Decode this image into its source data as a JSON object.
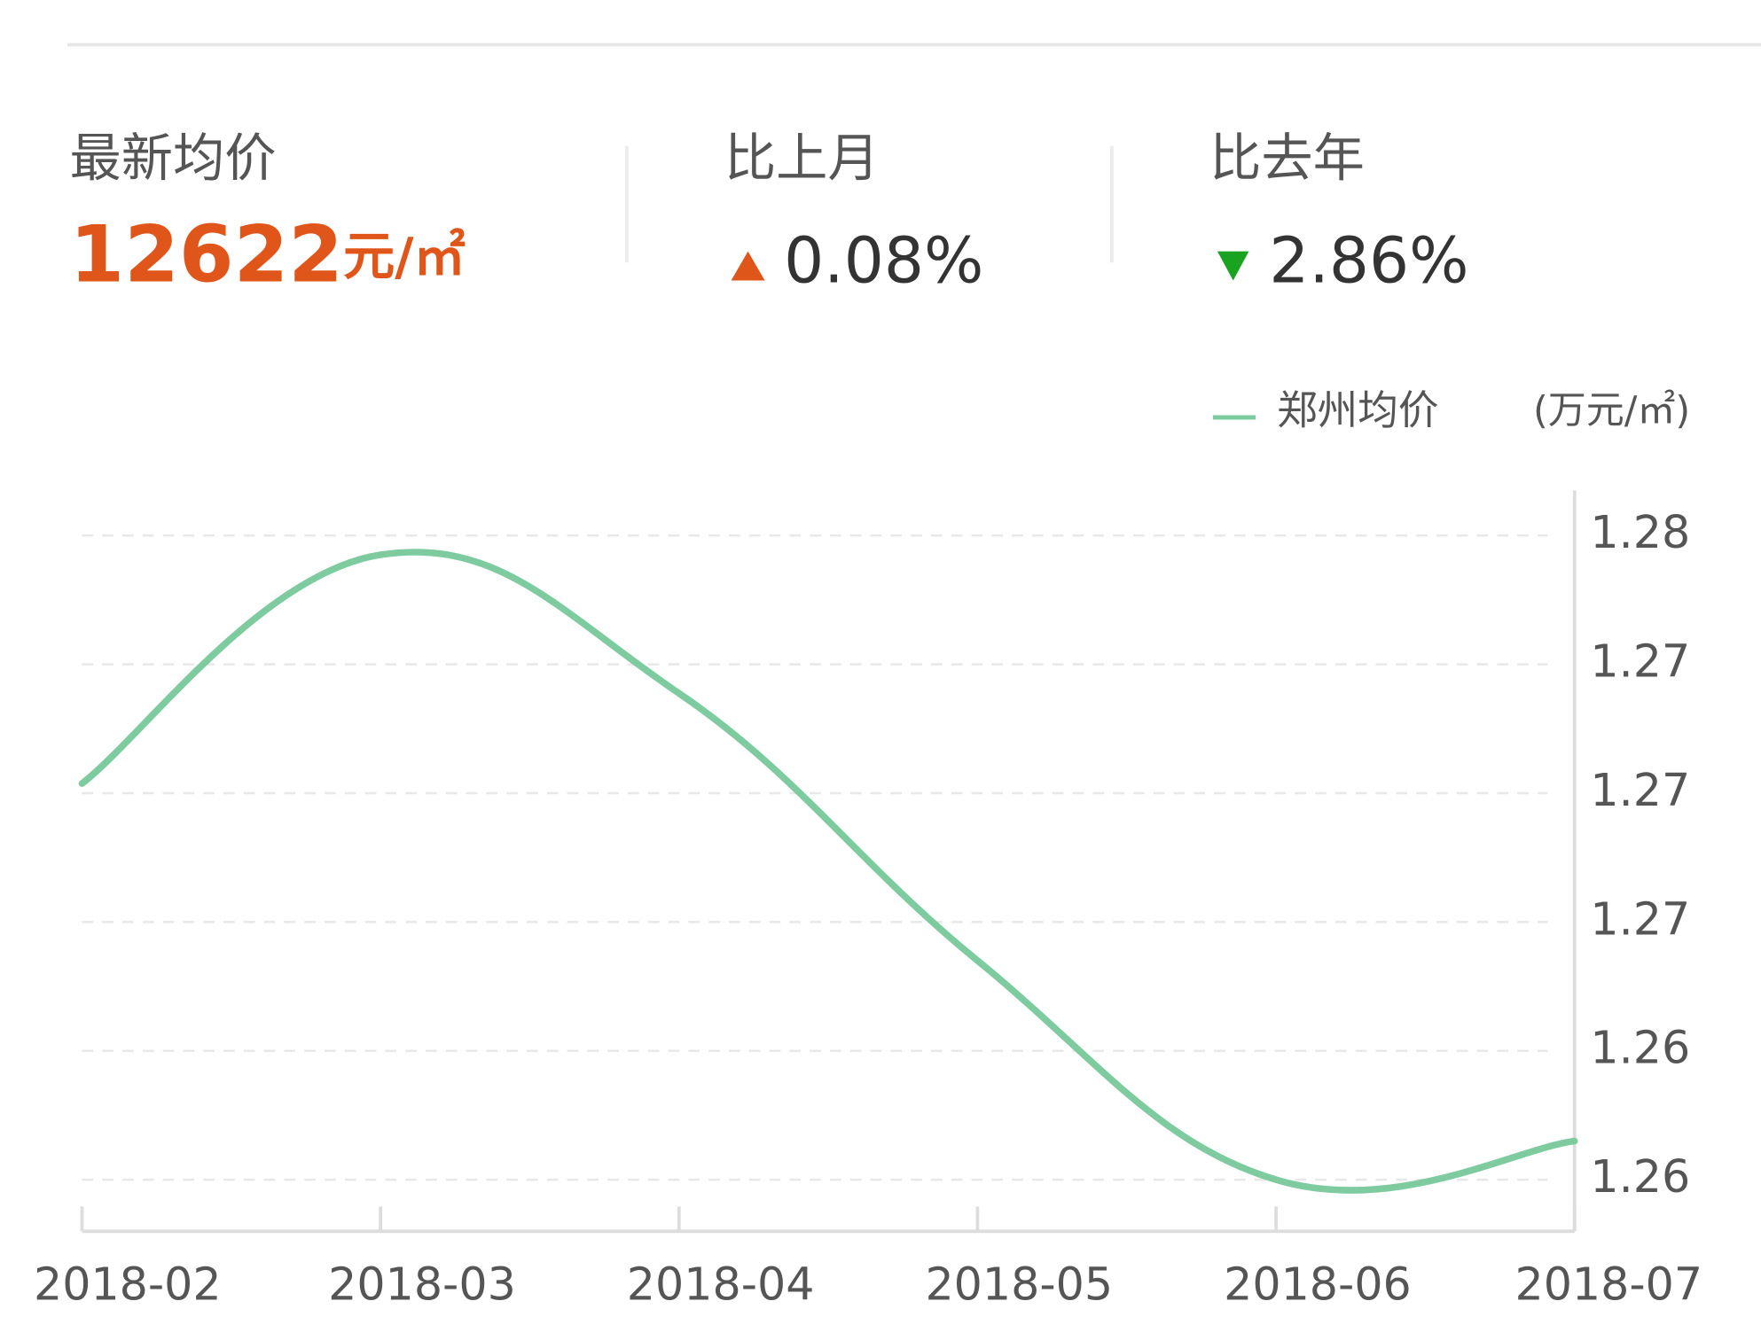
{
  "header": {
    "latest": {
      "label": "最新均价",
      "value": "12622",
      "unit": "元/㎡"
    },
    "mom": {
      "label": "比上月",
      "value": "0.08%"
    },
    "yoy": {
      "label": "比去年",
      "value": "2.86%"
    }
  },
  "chart_data": {
    "type": "line",
    "y_axis_label": "(万元/㎡)",
    "categories": [
      "2018-02",
      "2018-03",
      "2018-04",
      "2018-05",
      "2018-06",
      "2018-07"
    ],
    "series": [
      {
        "name": "郑州均价",
        "color": "#7dcb9e",
        "values": [
          1.2708,
          1.2779,
          1.2736,
          1.2653,
          1.2585,
          1.2597
        ]
      }
    ],
    "ylim": [
      1.2569,
      1.2799
    ],
    "yticks": [
      {
        "value": 1.2585,
        "label": "1.26"
      },
      {
        "value": 1.2625,
        "label": "1.26"
      },
      {
        "value": 1.2665,
        "label": "1.27"
      },
      {
        "value": 1.2705,
        "label": "1.27"
      },
      {
        "value": 1.2745,
        "label": "1.27"
      },
      {
        "value": 1.2785,
        "label": "1.28"
      }
    ],
    "grid": true
  }
}
